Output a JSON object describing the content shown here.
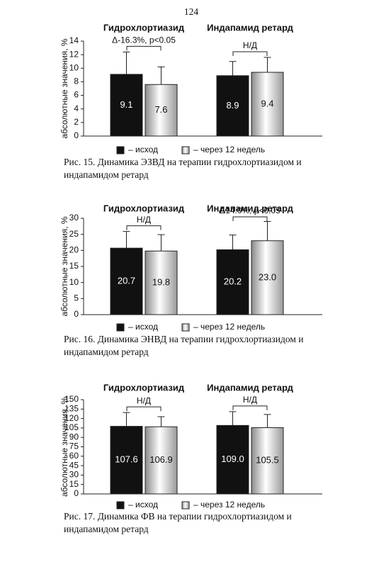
{
  "page_number": "124",
  "chart_data": [
    {
      "type": "bar",
      "categories": [
        "Гидрохлортиазид",
        "Индапамид ретард"
      ],
      "y_label": "абсолютные значения, %",
      "ylim": [
        0,
        14
      ],
      "yticks": [
        0,
        2,
        4,
        6,
        8,
        10,
        12,
        14
      ],
      "series": [
        {
          "name": "– исход",
          "color": "#111111",
          "values": [
            9.1,
            8.9
          ],
          "value_labels": [
            "9.1",
            "8.9"
          ],
          "errors": [
            3.3,
            2.1
          ]
        },
        {
          "name": "– через 12 недель",
          "color": "#b0b0b0",
          "gradient": true,
          "values": [
            7.6,
            9.4
          ],
          "value_labels": [
            "7.6",
            "9.4"
          ],
          "errors": [
            2.6,
            2.2
          ]
        }
      ],
      "annotations": [
        "Δ-16.3%, p<0.05",
        "Н/Д"
      ],
      "legend": "bottom",
      "caption": [
        "Рис. 15. Динамика ЭЗВД на терапии гидрохлортиазидом и",
        "индапамидом ретард"
      ]
    },
    {
      "type": "bar",
      "categories": [
        "Гидрохлортиазид",
        "Индапамид ретард"
      ],
      "y_label": "абсолютные значения, %",
      "ylim": [
        0,
        30
      ],
      "yticks": [
        0,
        5,
        10,
        15,
        20,
        25,
        30
      ],
      "series": [
        {
          "name": "– исход",
          "color": "#111111",
          "values": [
            20.7,
            20.2
          ],
          "value_labels": [
            "20.7",
            "20.2"
          ],
          "errors": [
            5.2,
            4.6
          ]
        },
        {
          "name": "– через 12 недель",
          "color": "#b0b0b0",
          "gradient": true,
          "values": [
            19.8,
            23.0
          ],
          "value_labels": [
            "19.8",
            "23.0"
          ],
          "errors": [
            5.1,
            6.0
          ]
        }
      ],
      "annotations": [
        "Н/Д",
        "Δ14.0%, p<0.05"
      ],
      "legend": "bottom",
      "caption": [
        "Рис. 16. Динамика ЭНВД на терапии гидрохлортиазидом и",
        "индапамидом ретард"
      ]
    },
    {
      "type": "bar",
      "categories": [
        "Гидрохлортиазид",
        "Индапамид ретард"
      ],
      "y_label": "абсолютные значения, %",
      "ylim": [
        0,
        150
      ],
      "yticks": [
        0,
        15,
        30,
        45,
        60,
        75,
        90,
        105,
        120,
        135,
        150
      ],
      "series": [
        {
          "name": "– исход",
          "color": "#111111",
          "values": [
            107.6,
            109.0
          ],
          "value_labels": [
            "107.6",
            "109.0"
          ],
          "errors": [
            22,
            22
          ]
        },
        {
          "name": "– через 12 недель",
          "color": "#b0b0b0",
          "gradient": true,
          "values": [
            106.9,
            105.5
          ],
          "value_labels": [
            "106.9",
            "105.5"
          ],
          "errors": [
            16,
            21
          ]
        }
      ],
      "annotations": [
        "Н/Д",
        "Н/Д"
      ],
      "legend": "bottom",
      "caption": [
        "Рис. 17. Динамика ФВ на терапии гидрохлортиазидом и",
        "индапамидом ретард"
      ]
    }
  ]
}
